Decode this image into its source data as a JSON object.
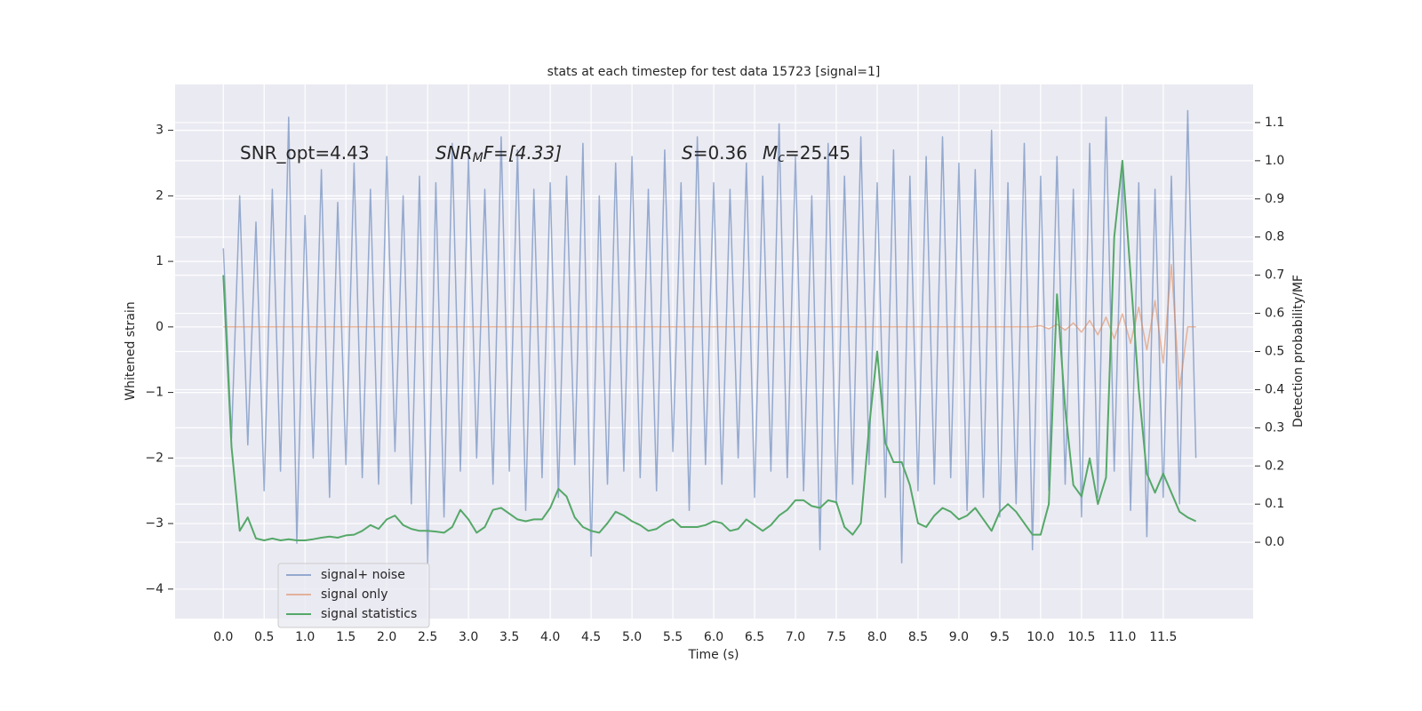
{
  "chart_data": {
    "type": "line",
    "title": "stats at each timestep for test data 15723 [signal=1]",
    "xlabel": "Time (s)",
    "ylabel": "Whitened strain",
    "y2label": "Detection probability/MF",
    "annotations": [
      [
        "SNR_opt=4.43"
      ],
      [
        "SNR",
        "M",
        "F=[4.33]"
      ],
      [
        "S",
        "=0.36"
      ],
      [
        "M",
        "c",
        "=25.45"
      ]
    ],
    "grid": true,
    "legend": "lower left",
    "xlim": [
      -0.59,
      12.6
    ],
    "ylim": [
      -4.45,
      3.7
    ],
    "y2lim": [
      -0.2,
      1.2
    ],
    "xticks": [
      {
        "value": 0,
        "label": "0.0"
      },
      0.5,
      {
        "value": 1,
        "label": "1.0"
      },
      1.5,
      {
        "value": 2,
        "label": "2.0"
      },
      2.5,
      {
        "value": 3,
        "label": "3.0"
      },
      3.5,
      {
        "value": 4,
        "label": "4.0"
      },
      4.5,
      {
        "value": 5,
        "label": "5.0"
      },
      5.5,
      {
        "value": 6,
        "label": "6.0"
      },
      6.5,
      {
        "value": 7,
        "label": "7.0"
      },
      7.5,
      {
        "value": 8,
        "label": "8.0"
      },
      8.5,
      {
        "value": 9,
        "label": "9.0"
      },
      9.5,
      {
        "value": 10,
        "label": "10.0"
      },
      10.5,
      {
        "value": 11,
        "label": "11.0"
      },
      11.5
    ],
    "yticks": [
      {
        "value": -4,
        "label": "−4"
      },
      {
        "value": -3,
        "label": "−3"
      },
      {
        "value": -2,
        "label": "−2"
      },
      {
        "value": -1,
        "label": "−1"
      },
      0,
      1,
      2,
      3
    ],
    "y2ticks": [
      {
        "value": 0,
        "label": "0.0"
      },
      0.1,
      0.2,
      0.3,
      0.4,
      0.5,
      0.6,
      0.7,
      0.8,
      0.9,
      {
        "value": 1,
        "label": "1.0"
      },
      1.1
    ],
    "x": [
      0.0,
      0.1,
      0.2,
      0.3,
      0.4,
      0.5,
      0.6,
      0.7,
      0.8,
      0.9,
      1.0,
      1.1,
      1.2,
      1.3,
      1.4,
      1.5,
      1.6,
      1.7,
      1.8,
      1.9,
      2.0,
      2.1,
      2.2,
      2.3,
      2.4,
      2.5,
      2.6,
      2.7,
      2.8,
      2.9,
      3.0,
      3.1,
      3.2,
      3.3,
      3.4,
      3.5,
      3.6,
      3.7,
      3.8,
      3.9,
      4.0,
      4.1,
      4.2,
      4.3,
      4.4,
      4.5,
      4.6,
      4.7,
      4.8,
      4.9,
      5.0,
      5.1,
      5.2,
      5.3,
      5.4,
      5.5,
      5.6,
      5.7,
      5.8,
      5.9,
      6.0,
      6.1,
      6.2,
      6.3,
      6.4,
      6.5,
      6.6,
      6.7,
      6.8,
      6.9,
      7.0,
      7.1,
      7.2,
      7.3,
      7.4,
      7.5,
      7.6,
      7.7,
      7.8,
      7.9,
      8.0,
      8.1,
      8.2,
      8.3,
      8.4,
      8.5,
      8.6,
      8.7,
      8.8,
      8.9,
      9.0,
      9.1,
      9.2,
      9.3,
      9.4,
      9.5,
      9.6,
      9.7,
      9.8,
      9.9,
      10.0,
      10.1,
      10.2,
      10.3,
      10.4,
      10.5,
      10.6,
      10.7,
      10.8,
      10.9,
      11.0,
      11.1,
      11.2,
      11.3,
      11.4,
      11.5,
      11.6,
      11.7,
      11.8,
      11.9
    ],
    "series": [
      {
        "name": "signal+ noise",
        "color": "#4c72b0",
        "values": [
          1.2,
          -1.7,
          2.0,
          -1.8,
          1.6,
          -2.5,
          2.1,
          -2.2,
          3.2,
          -3.3,
          1.7,
          -2.0,
          2.4,
          -2.6,
          1.9,
          -2.1,
          2.5,
          -2.3,
          2.1,
          -2.4,
          2.6,
          -1.9,
          2.0,
          -2.7,
          2.3,
          -3.6,
          2.2,
          -2.9,
          2.8,
          -2.2,
          2.6,
          -2.0,
          2.1,
          -2.4,
          2.9,
          -2.2,
          2.7,
          -2.8,
          2.1,
          -2.3,
          2.2,
          -2.6,
          2.3,
          -2.1,
          2.8,
          -3.5,
          2.0,
          -2.4,
          2.5,
          -2.2,
          2.6,
          -2.3,
          2.1,
          -2.5,
          2.7,
          -1.9,
          2.2,
          -2.8,
          2.9,
          -2.1,
          2.2,
          -2.4,
          2.1,
          -2.0,
          2.5,
          -2.6,
          2.3,
          -2.2,
          3.1,
          -2.3,
          2.6,
          -2.5,
          2.0,
          -3.4,
          2.8,
          -2.7,
          2.3,
          -2.4,
          2.9,
          -2.1,
          2.2,
          -2.6,
          2.7,
          -3.6,
          2.3,
          -2.5,
          2.6,
          -2.4,
          2.9,
          -2.3,
          2.5,
          -2.8,
          2.4,
          -2.6,
          3.0,
          -2.9,
          2.2,
          -2.7,
          2.8,
          -3.4,
          2.3,
          -2.5,
          2.6,
          -2.4,
          2.1,
          -2.9,
          2.8,
          -2.6,
          3.2,
          -2.2,
          2.4,
          -2.8,
          2.2,
          -3.2,
          2.1,
          -2.6,
          2.3,
          -2.7,
          3.3,
          -2.0
        ]
      },
      {
        "name": "signal only",
        "color": "#dd8452",
        "values": [
          0,
          0,
          0,
          0,
          0,
          0,
          0,
          0,
          0,
          0,
          0,
          0,
          0,
          0,
          0,
          0,
          0,
          0,
          0,
          0,
          0,
          0,
          0,
          0,
          0,
          0,
          0,
          0,
          0,
          0,
          0,
          0,
          0,
          0,
          0,
          0,
          0,
          0,
          0,
          0,
          0,
          0,
          0,
          0,
          0,
          0,
          0,
          0,
          0,
          0,
          0,
          0,
          0,
          0,
          0,
          0,
          0,
          0,
          0,
          0,
          0,
          0,
          0,
          0,
          0,
          0,
          0,
          0,
          0,
          0,
          0,
          0,
          0,
          0,
          0,
          0,
          0,
          0,
          0,
          0,
          0,
          0,
          0,
          0,
          0,
          0,
          0,
          0,
          0,
          0,
          0,
          0,
          0,
          0,
          0,
          0,
          0,
          0,
          0,
          0,
          0.02,
          -0.03,
          0.04,
          -0.05,
          0.06,
          -0.08,
          0.1,
          -0.12,
          0.15,
          -0.18,
          0.2,
          -0.25,
          0.3,
          -0.35,
          0.4,
          -0.55,
          0.95,
          -0.95,
          0,
          0
        ]
      },
      {
        "name": "signal statistics",
        "color": "#55a868",
        "axis": "y2",
        "values": [
          0.7,
          0.25,
          0.03,
          0.065,
          0.01,
          0.005,
          0.01,
          0.005,
          0.008,
          0.005,
          0.005,
          0.008,
          0.012,
          0.015,
          0.012,
          0.018,
          0.02,
          0.03,
          0.045,
          0.035,
          0.06,
          0.07,
          0.045,
          0.035,
          0.03,
          0.03,
          0.028,
          0.025,
          0.04,
          0.085,
          0.06,
          0.025,
          0.04,
          0.085,
          0.09,
          0.075,
          0.06,
          0.055,
          0.06,
          0.06,
          0.09,
          0.14,
          0.12,
          0.065,
          0.04,
          0.03,
          0.025,
          0.05,
          0.08,
          0.07,
          0.055,
          0.045,
          0.03,
          0.035,
          0.05,
          0.06,
          0.04,
          0.04,
          0.04,
          0.045,
          0.055,
          0.05,
          0.03,
          0.035,
          0.06,
          0.045,
          0.03,
          0.045,
          0.07,
          0.085,
          0.11,
          0.11,
          0.095,
          0.09,
          0.11,
          0.105,
          0.04,
          0.02,
          0.05,
          0.3,
          0.5,
          0.26,
          0.21,
          0.21,
          0.15,
          0.05,
          0.04,
          0.07,
          0.09,
          0.08,
          0.06,
          0.07,
          0.09,
          0.06,
          0.03,
          0.08,
          0.1,
          0.08,
          0.05,
          0.02,
          0.02,
          0.1,
          0.65,
          0.35,
          0.15,
          0.12,
          0.22,
          0.1,
          0.17,
          0.8,
          1.0,
          0.7,
          0.4,
          0.18,
          0.13,
          0.18,
          0.13,
          0.08,
          0.065,
          0.055
        ]
      }
    ]
  }
}
